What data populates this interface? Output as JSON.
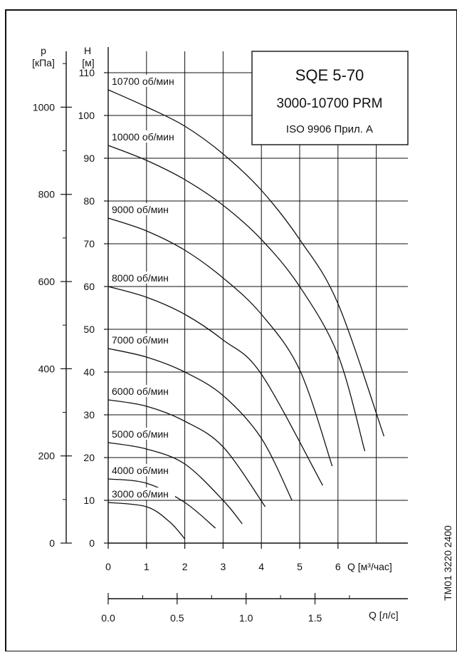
{
  "document_id": "TM01 3220 2400",
  "chart_data": {
    "type": "line",
    "title": "SQE 5-70",
    "subtitle": "3000-10700 PRM",
    "note": "ISO 9906 Прил. A",
    "axes": {
      "head": {
        "unit_symbol": "H",
        "unit": "[м]",
        "ticks": [
          0,
          10,
          20,
          30,
          40,
          50,
          60,
          70,
          80,
          90,
          100,
          110
        ],
        "ylim": [
          0,
          115
        ]
      },
      "pressure": {
        "unit_symbol": "p",
        "unit": "[кПа]",
        "ticks": [
          0,
          200,
          400,
          600,
          800,
          1000
        ],
        "minor_ticks": [
          100,
          300,
          500,
          700,
          900,
          1100
        ]
      },
      "flow_m3h": {
        "label": "Q [м³/час]",
        "ticks": [
          0,
          1,
          2,
          3,
          4,
          5,
          6
        ],
        "xlim": [
          0,
          7.4
        ]
      },
      "flow_ls": {
        "label": "Q [л/с]",
        "ticks": [
          "0.0",
          "0.5",
          "1.0",
          "1.5"
        ],
        "tick_values": [
          0.0,
          0.5,
          1.0,
          1.5
        ],
        "minor_ticks": [
          0.25,
          0.75,
          1.25,
          1.75
        ]
      }
    },
    "grid": true,
    "series": [
      {
        "name": "10700 об/мин",
        "x": [
          0,
          1,
          2,
          3,
          4,
          5,
          6,
          7.2
        ],
        "y": [
          106,
          102,
          97.5,
          91,
          82.5,
          71,
          56,
          25
        ]
      },
      {
        "name": "10000 об/мин",
        "x": [
          0,
          1,
          2,
          3,
          4,
          5,
          6,
          6.7
        ],
        "y": [
          93,
          89.5,
          85,
          79,
          71,
          60,
          44,
          21.5
        ]
      },
      {
        "name": "9000 об/мин",
        "x": [
          0,
          1,
          2,
          3,
          4,
          5,
          5.85
        ],
        "y": [
          76,
          73,
          68.5,
          62,
          53.5,
          40.5,
          18
        ]
      },
      {
        "name": "8000 об/мин",
        "x": [
          0,
          1,
          2,
          3,
          4,
          5.6
        ],
        "y": [
          60,
          57.5,
          53.5,
          47.5,
          39.5,
          13.5
        ]
      },
      {
        "name": "7000 об/мин",
        "x": [
          0,
          1,
          2,
          3,
          4,
          4.8
        ],
        "y": [
          45.5,
          43.5,
          40,
          34.5,
          24.5,
          10
        ]
      },
      {
        "name": "6000 об/мин",
        "x": [
          0,
          1,
          2,
          3,
          4.1
        ],
        "y": [
          33.5,
          32,
          28.5,
          22.5,
          8.5
        ]
      },
      {
        "name": "5000 об/мин",
        "x": [
          0,
          1,
          2,
          3,
          3.5
        ],
        "y": [
          23.5,
          22,
          18.5,
          10,
          4.5
        ]
      },
      {
        "name": "4000 об/мин",
        "x": [
          0,
          1,
          2,
          2.8
        ],
        "y": [
          15,
          14,
          9.5,
          3.5
        ]
      },
      {
        "name": "3000 об/мин",
        "x": [
          0,
          1,
          1.6,
          2.0
        ],
        "y": [
          9.5,
          8.5,
          5,
          1
        ]
      }
    ]
  }
}
